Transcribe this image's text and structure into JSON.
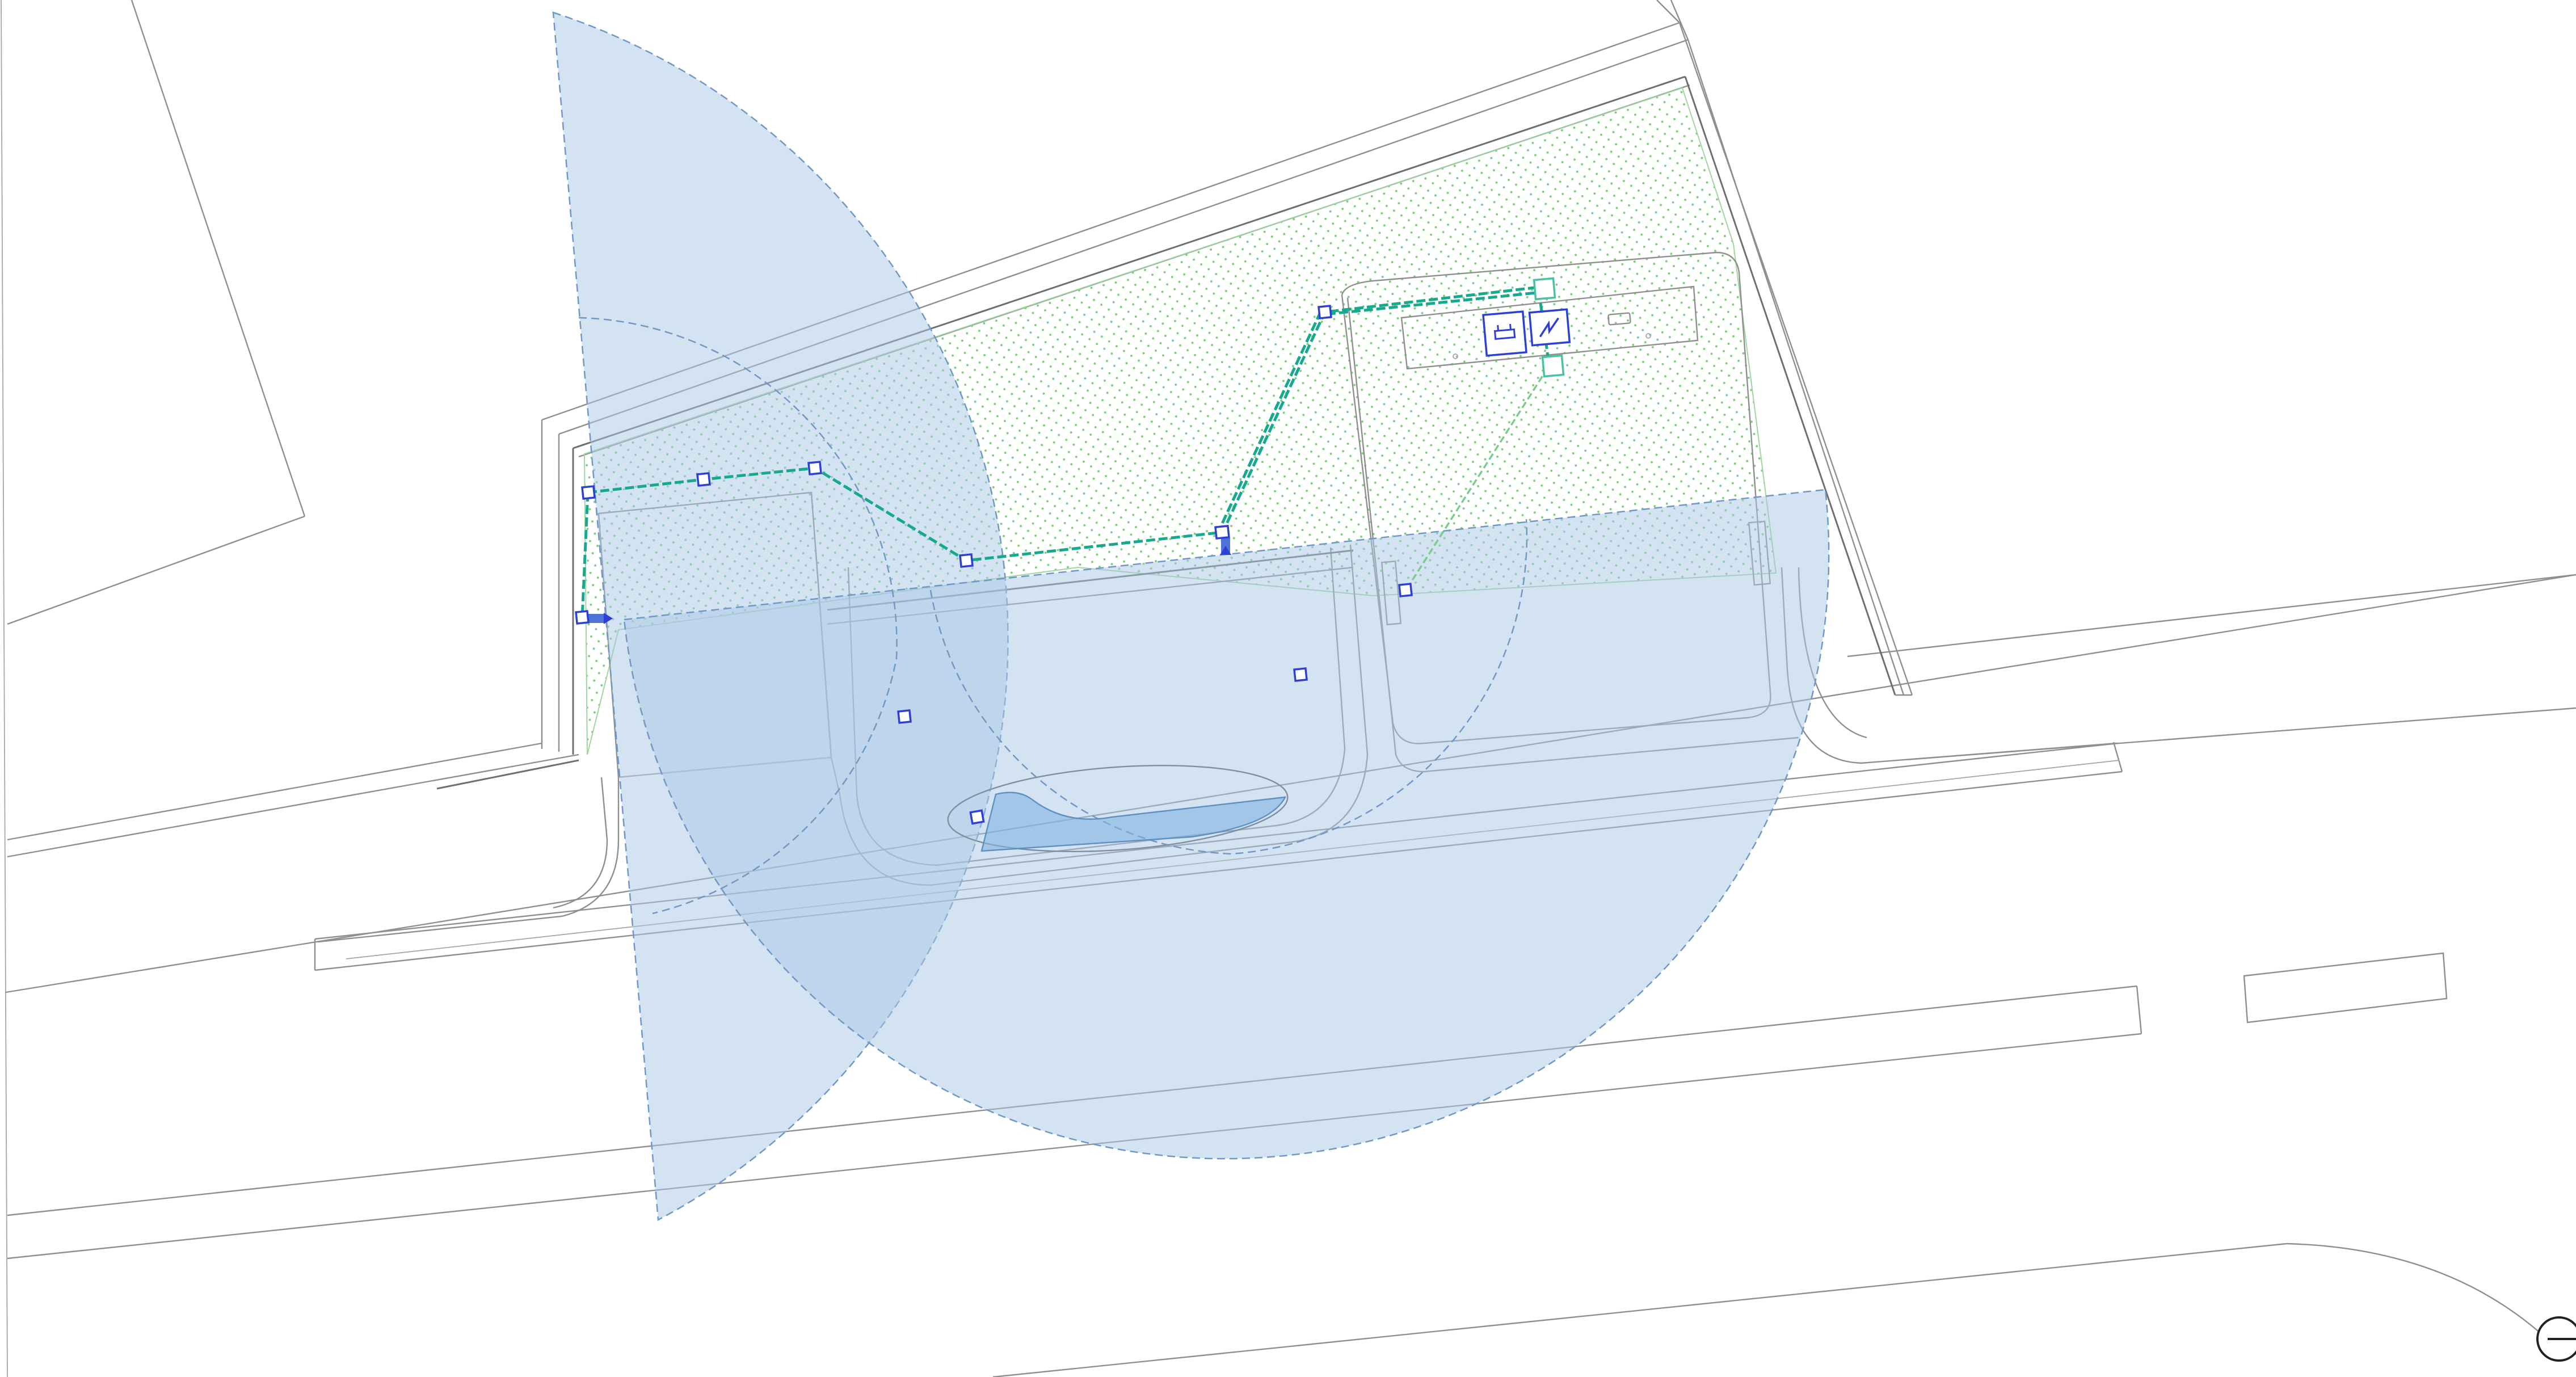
{
  "drawing": {
    "background": "#ffffff",
    "colors": {
      "coverage_fill": "#a9c7e6",
      "coverage_stroke": "#6f98c7",
      "cable_primary": "#17a98d",
      "cable_secondary": "#7ccc8d",
      "device_outline": "#2d3fd6",
      "junction_outline": "#48c2a3",
      "planting_dots": "#7fcf7f",
      "site_lines": "#8f8f8f"
    },
    "layers": [
      {
        "name": "site-plan-linework",
        "style": "thin grey lines"
      },
      {
        "name": "planting-area",
        "style": "green dot hatch"
      },
      {
        "name": "camera-coverage-zones",
        "count": 2,
        "style": "translucent blue with dashed edge"
      },
      {
        "name": "cable-routes",
        "style": "dashed teal"
      },
      {
        "name": "devices",
        "count": 12,
        "style": "small blue squares"
      },
      {
        "name": "equipment-cabinet",
        "icons": [
          "router-icon",
          "power-icon"
        ]
      }
    ],
    "north_symbol": "circle-compass-icon"
  }
}
